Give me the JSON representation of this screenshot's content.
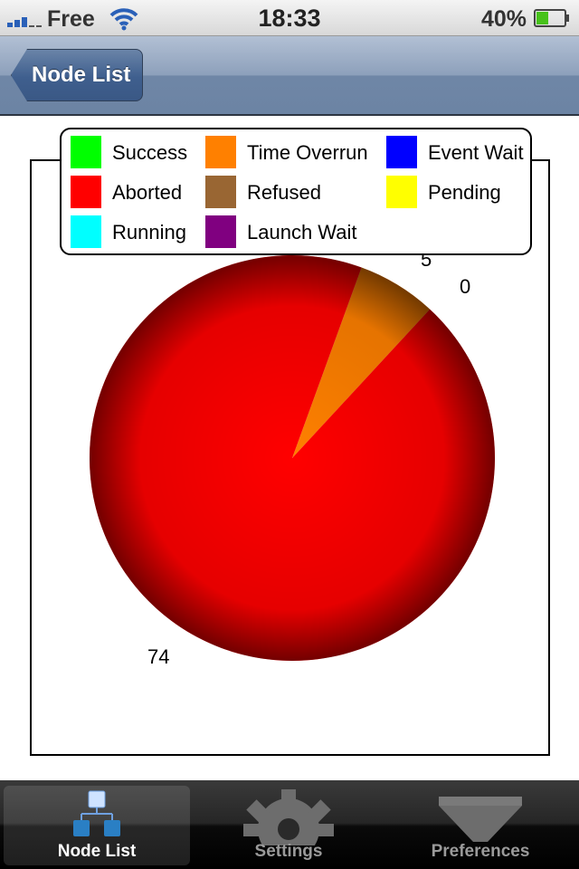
{
  "status_bar": {
    "carrier": "Free",
    "time": "18:33",
    "battery": "40%"
  },
  "nav": {
    "back_label": "Node List"
  },
  "legend": [
    {
      "label": "Success",
      "color": "#00ff00"
    },
    {
      "label": "Time Overrun",
      "color": "#ff8000"
    },
    {
      "label": "Event Wait",
      "color": "#0000ff"
    },
    {
      "label": "Aborted",
      "color": "#ff0000"
    },
    {
      "label": "Refused",
      "color": "#996633"
    },
    {
      "label": "Pending",
      "color": "#ffff00"
    },
    {
      "label": "Running",
      "color": "#00ffff"
    },
    {
      "label": "Launch Wait",
      "color": "#800080"
    }
  ],
  "chart_data": {
    "type": "pie",
    "slices": [
      {
        "label": "Aborted",
        "value": 74,
        "data_label": "74",
        "color": "#ff0000"
      },
      {
        "label": "Time Overrun",
        "value": 5,
        "data_label": "5",
        "color": "#ff8000"
      },
      {
        "label": "Refused",
        "value": 0,
        "data_label": "0",
        "color": "#996633"
      }
    ],
    "legend_position": "top"
  },
  "tabs": [
    {
      "label": "Node List",
      "icon": "node-list-icon",
      "selected": true
    },
    {
      "label": "Settings",
      "icon": "gear-icon",
      "selected": false
    },
    {
      "label": "Preferences",
      "icon": "funnel-icon",
      "selected": false
    }
  ]
}
